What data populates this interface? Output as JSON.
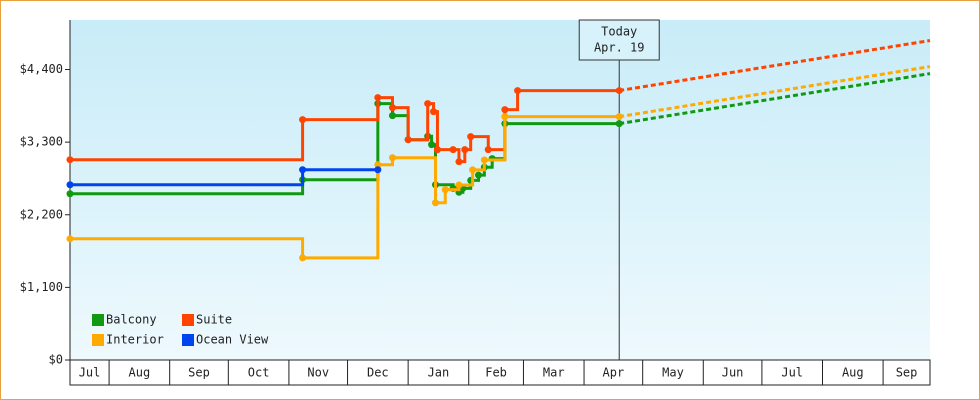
{
  "chart_data": {
    "type": "step",
    "xlim": [
      11,
      451
    ],
    "xticks": [
      {
        "value": 11,
        "label": "Jul"
      },
      {
        "value": 31,
        "label": "Aug"
      },
      {
        "value": 62,
        "label": "Sep"
      },
      {
        "value": 92,
        "label": "Oct"
      },
      {
        "value": 123,
        "label": "Nov"
      },
      {
        "value": 153,
        "label": "Dec"
      },
      {
        "value": 184,
        "label": "Jan"
      },
      {
        "value": 215,
        "label": "Feb"
      },
      {
        "value": 243,
        "label": "Mar"
      },
      {
        "value": 274,
        "label": "Apr"
      },
      {
        "value": 304,
        "label": "May"
      },
      {
        "value": 335,
        "label": "Jun"
      },
      {
        "value": 365,
        "label": "Jul"
      },
      {
        "value": 396,
        "label": "Aug"
      },
      {
        "value": 427,
        "label": "Sep"
      }
    ],
    "ylim": [
      0,
      5150
    ],
    "yticks": [
      {
        "value": 0,
        "label": "$0"
      },
      {
        "value": 1100,
        "label": "$1,100"
      },
      {
        "value": 2200,
        "label": "$2,200"
      },
      {
        "value": 3300,
        "label": "$3,300"
      },
      {
        "value": 4400,
        "label": "$4,400"
      }
    ],
    "legend": "lower left",
    "annotation": {
      "lines": [
        "Today",
        "Apr. 19"
      ],
      "x": 292
    },
    "series": [
      {
        "name": "Balcony",
        "color": "#119911",
        "x": [
          11,
          130,
          168.5,
          176,
          184,
          194,
          196,
          198,
          207,
          210,
          212,
          216,
          220,
          223,
          227,
          233.5,
          292
        ],
        "values": [
          2518,
          2731,
          3884,
          3701,
          3337,
          3390,
          3262,
          2655,
          2600,
          2540,
          2600,
          2720,
          2800,
          2920,
          3050,
          3580,
          3580
        ],
        "forecast": {
          "x": [
            292,
            451
          ],
          "values": [
            3580,
            4338
          ]
        }
      },
      {
        "name": "Suite",
        "color": "#ff4400",
        "x": [
          11,
          130,
          168.5,
          176,
          184,
          194,
          197,
          199,
          207,
          210,
          213,
          216,
          225,
          233.5,
          240,
          292
        ],
        "values": [
          3034,
          3641,
          3975,
          3823,
          3337,
          3884,
          3762,
          3186,
          3186,
          3004,
          3186,
          3383,
          3186,
          3793,
          4081,
          4081
        ],
        "forecast": {
          "x": [
            292,
            451
          ],
          "values": [
            4081,
            4839
          ]
        }
      },
      {
        "name": "Interior",
        "color": "#ffaa00",
        "x": [
          11,
          130,
          168.5,
          176,
          198,
          203,
          210,
          217,
          223,
          233.5,
          292
        ],
        "values": [
          1836,
          1547,
          2958,
          3064,
          2382,
          2580,
          2650,
          2880,
          3030,
          3686,
          3686
        ],
        "forecast": {
          "x": [
            292,
            451
          ],
          "values": [
            3686,
            4445
          ]
        }
      },
      {
        "name": "Ocean View",
        "color": "#0044ee",
        "x": [
          11,
          130,
          168.5
        ],
        "values": [
          2655,
          2882,
          2882
        ]
      }
    ]
  }
}
